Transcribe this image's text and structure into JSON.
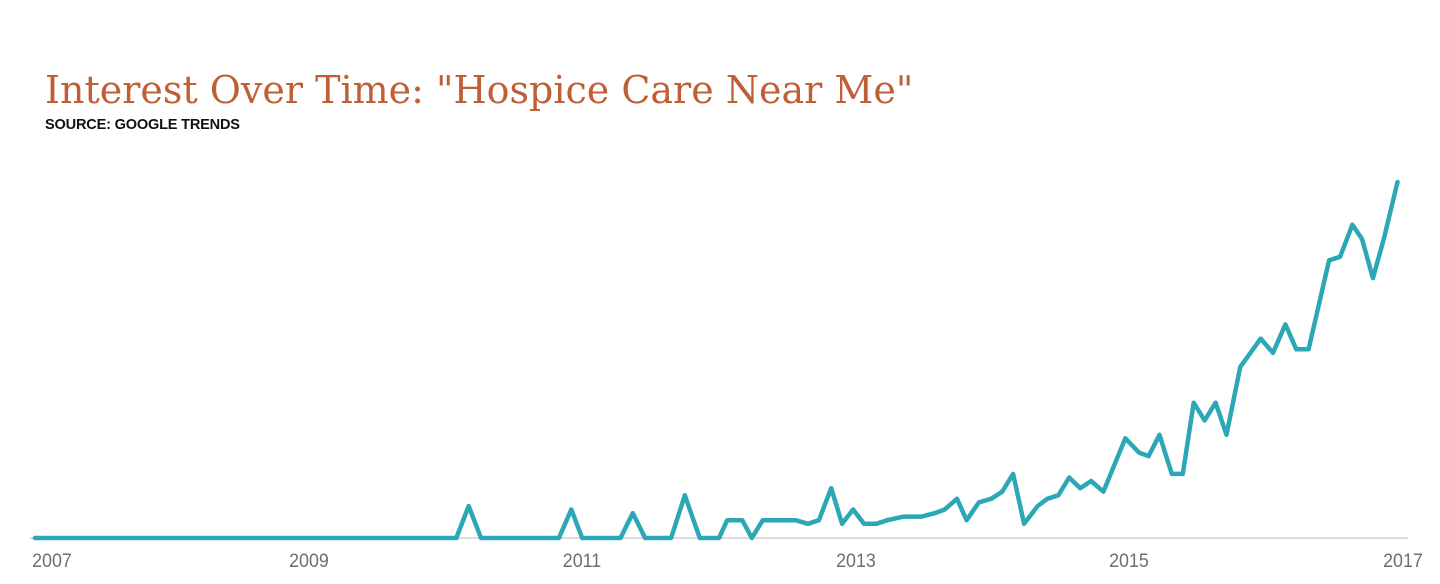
{
  "header": {
    "title": "Interest Over Time: \"Hospice Care Near Me\"",
    "source": "SOURCE: GOOGLE TRENDS",
    "title_color": "#C05F36"
  },
  "chart_data": {
    "type": "line",
    "title": "Interest Over Time: \"Hospice Care Near Me\"",
    "subtitle": "SOURCE: GOOGLE TRENDS",
    "xlabel": "",
    "ylabel": "",
    "x_ticks": [
      2007,
      2009,
      2011,
      2013,
      2015,
      2017
    ],
    "xlim": [
      2007,
      2017
    ],
    "ylim": [
      0,
      100
    ],
    "grid": false,
    "legend_position": "none",
    "line_color": "#2BA7B6",
    "axis_color": "#DBDBDB",
    "tick_label_color": "#6E6E6E",
    "series": [
      {
        "name": "Hospice Care Near Me",
        "points": [
          [
            2007.0,
            0
          ],
          [
            2007.5,
            0
          ],
          [
            2008.0,
            0
          ],
          [
            2008.5,
            0
          ],
          [
            2009.0,
            0
          ],
          [
            2009.5,
            0
          ],
          [
            2010.0,
            0
          ],
          [
            2010.08,
            0
          ],
          [
            2010.17,
            9
          ],
          [
            2010.26,
            0
          ],
          [
            2010.6,
            0
          ],
          [
            2010.83,
            0
          ],
          [
            2010.92,
            8
          ],
          [
            2011.0,
            0
          ],
          [
            2011.28,
            0
          ],
          [
            2011.37,
            7
          ],
          [
            2011.46,
            0
          ],
          [
            2011.65,
            0
          ],
          [
            2011.75,
            12
          ],
          [
            2011.86,
            0
          ],
          [
            2012.0,
            0
          ],
          [
            2012.06,
            5
          ],
          [
            2012.17,
            5
          ],
          [
            2012.24,
            0
          ],
          [
            2012.32,
            5
          ],
          [
            2012.45,
            5
          ],
          [
            2012.56,
            5
          ],
          [
            2012.65,
            4
          ],
          [
            2012.73,
            5
          ],
          [
            2012.82,
            14
          ],
          [
            2012.9,
            4
          ],
          [
            2012.98,
            8
          ],
          [
            2013.06,
            4
          ],
          [
            2013.15,
            4
          ],
          [
            2013.23,
            5
          ],
          [
            2013.35,
            6
          ],
          [
            2013.48,
            6
          ],
          [
            2013.58,
            7
          ],
          [
            2013.65,
            8
          ],
          [
            2013.74,
            11
          ],
          [
            2013.81,
            5
          ],
          [
            2013.9,
            10
          ],
          [
            2013.99,
            11
          ],
          [
            2014.07,
            13
          ],
          [
            2014.15,
            18
          ],
          [
            2014.23,
            4
          ],
          [
            2014.33,
            9
          ],
          [
            2014.4,
            11
          ],
          [
            2014.48,
            12
          ],
          [
            2014.56,
            17
          ],
          [
            2014.64,
            14
          ],
          [
            2014.72,
            16
          ],
          [
            2014.81,
            13
          ],
          [
            2014.97,
            28
          ],
          [
            2015.07,
            24
          ],
          [
            2015.14,
            23
          ],
          [
            2015.22,
            29
          ],
          [
            2015.31,
            18
          ],
          [
            2015.39,
            18
          ],
          [
            2015.47,
            38
          ],
          [
            2015.55,
            33
          ],
          [
            2015.63,
            38
          ],
          [
            2015.71,
            29
          ],
          [
            2015.81,
            48
          ],
          [
            2015.96,
            56
          ],
          [
            2016.05,
            52
          ],
          [
            2016.14,
            60
          ],
          [
            2016.22,
            53
          ],
          [
            2016.31,
            53
          ],
          [
            2016.46,
            78
          ],
          [
            2016.54,
            79
          ],
          [
            2016.63,
            88
          ],
          [
            2016.7,
            84
          ],
          [
            2016.78,
            73
          ],
          [
            2016.86,
            84
          ],
          [
            2016.96,
            100
          ]
        ]
      }
    ]
  }
}
